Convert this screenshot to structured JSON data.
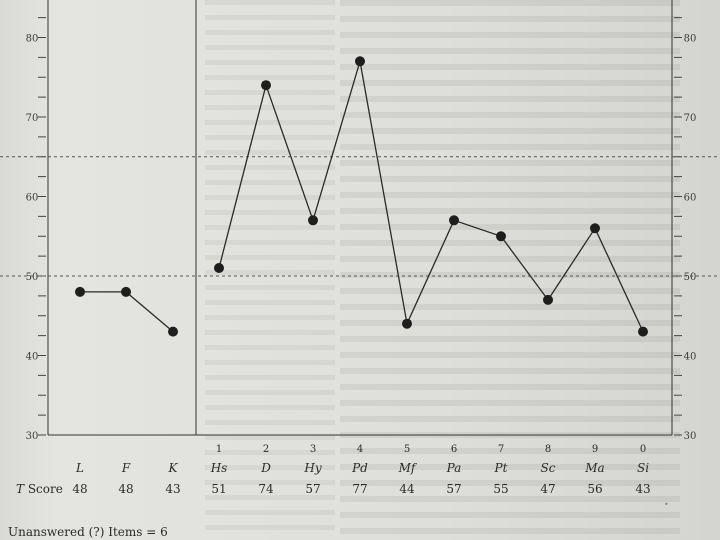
{
  "chart_data": {
    "type": "line",
    "title": "",
    "xlabel": "",
    "ylabel": "",
    "ylim": [
      30,
      80
    ],
    "y_ticks": [
      "30",
      "40",
      "50",
      "60",
      "70",
      "80"
    ],
    "reference_lines": [
      50,
      65
    ],
    "validity_scales": {
      "labels": [
        "L",
        "F",
        "K"
      ],
      "values": [
        48,
        48,
        43
      ]
    },
    "clinical_scales": {
      "numbers": [
        "1",
        "2",
        "3",
        "4",
        "5",
        "6",
        "7",
        "8",
        "9",
        "0"
      ],
      "labels": [
        "Hs",
        "D",
        "Hy",
        "Pd",
        "Mf",
        "Pa",
        "Pt",
        "Sc",
        "Ma",
        "Si"
      ],
      "values": [
        51,
        74,
        57,
        77,
        44,
        57,
        55,
        47,
        56,
        43
      ]
    },
    "t_score_row": {
      "label_italic": "T",
      "label_rest": " Score",
      "values": [
        "48",
        "48",
        "43",
        "51",
        "74",
        "57",
        "77",
        "44",
        "57",
        "55",
        "47",
        "56",
        "43"
      ]
    },
    "footer_note": "Unanswered (?) Items = 6",
    "colors": {
      "line": "#2a2a2a",
      "marker": "#1e1e1e",
      "dashed": "#555555"
    }
  }
}
